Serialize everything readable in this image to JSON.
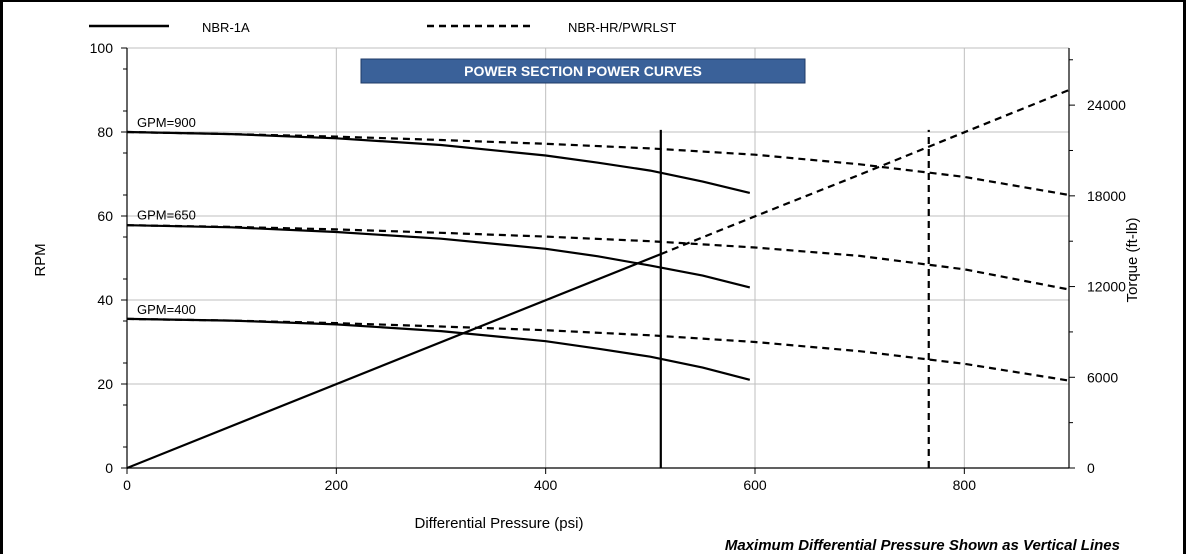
{
  "chart_data": {
    "type": "line",
    "title": "POWER SECTION POWER CURVES",
    "xlabel": "Differential Pressure (psi)",
    "ylabel": "RPM",
    "y2label": "Torque (ft-lb)",
    "footnote": "Maximum Differential Pressure Shown as Vertical Lines",
    "xlim": [
      0,
      900
    ],
    "ylim": [
      0,
      100
    ],
    "y2lim": [
      0,
      27778
    ],
    "x_ticks": [
      "0",
      "200",
      "400",
      "600",
      "800"
    ],
    "x_tick_values": [
      0,
      200,
      400,
      600,
      800
    ],
    "y_ticks": [
      "0",
      "20",
      "40",
      "60",
      "80",
      "100"
    ],
    "y_tick_values": [
      0,
      20,
      40,
      60,
      80,
      100
    ],
    "y2_ticks": [
      "0",
      "6000",
      "12000",
      "18000",
      "24000"
    ],
    "y2_tick_values": [
      0,
      6000,
      12000,
      18000,
      24000
    ],
    "grid": true,
    "legend_position": "top",
    "legend": [
      {
        "label": "NBR-1A",
        "style": "solid"
      },
      {
        "label": "NBR-HR/PWRLST",
        "style": "dashed"
      }
    ],
    "flow_labels": [
      {
        "text": "GPM=900",
        "y": 80
      },
      {
        "text": "GPM=650",
        "y": 58
      },
      {
        "text": "GPM=400",
        "y": 35.5
      }
    ],
    "series": [
      {
        "name": "GPM=900",
        "style": "solid",
        "axis": "rpm",
        "x": [
          0,
          100,
          200,
          300,
          400,
          450,
          500,
          550,
          595
        ],
        "y": [
          80,
          79.5,
          78.5,
          76.9,
          74.4,
          72.7,
          70.8,
          68.2,
          65.5
        ]
      },
      {
        "name": "GPM=650",
        "style": "solid",
        "axis": "rpm",
        "x": [
          0,
          100,
          200,
          300,
          400,
          450,
          500,
          550,
          595
        ],
        "y": [
          57.8,
          57.3,
          56.2,
          54.6,
          52.2,
          50.4,
          48.2,
          45.8,
          43
        ]
      },
      {
        "name": "GPM=400",
        "style": "solid",
        "axis": "rpm",
        "x": [
          0,
          100,
          200,
          300,
          400,
          450,
          500,
          550,
          595
        ],
        "y": [
          35.5,
          35.1,
          34.2,
          32.6,
          30.2,
          28.4,
          26.5,
          23.9,
          21
        ]
      },
      {
        "name": "GPM=900",
        "style": "dashed",
        "axis": "rpm",
        "x": [
          0,
          100,
          200,
          300,
          400,
          500,
          600,
          700,
          800,
          900
        ],
        "y": [
          80,
          79.5,
          78.9,
          78.1,
          77.2,
          76.1,
          74.6,
          72.3,
          69.3,
          65
        ]
      },
      {
        "name": "GPM=650",
        "style": "dashed",
        "axis": "rpm",
        "x": [
          0,
          100,
          200,
          300,
          400,
          500,
          600,
          700,
          800,
          900
        ],
        "y": [
          57.8,
          57.4,
          56.8,
          56,
          55.1,
          54,
          52.5,
          50.5,
          47.3,
          42.5
        ]
      },
      {
        "name": "GPM=400",
        "style": "dashed",
        "axis": "rpm",
        "x": [
          0,
          100,
          200,
          300,
          400,
          500,
          600,
          700,
          800,
          900
        ],
        "y": [
          35.5,
          35.1,
          34.5,
          33.7,
          32.8,
          31.6,
          30,
          27.8,
          24.8,
          20.8
        ]
      },
      {
        "name": "Torque",
        "style": "solid",
        "axis": "torque",
        "x": [
          0,
          510
        ],
        "y": [
          0,
          14150
        ]
      },
      {
        "name": "Torque",
        "style": "dashed",
        "axis": "torque",
        "x": [
          510,
          600,
          700,
          800,
          900
        ],
        "y": [
          14150,
          16650,
          19400,
          22200,
          25000
        ]
      }
    ],
    "vertical_lines": [
      {
        "x": 510,
        "style": "solid",
        "ymax": 80.5
      },
      {
        "x": 766,
        "style": "dashed",
        "ymax": 80.5
      }
    ]
  }
}
